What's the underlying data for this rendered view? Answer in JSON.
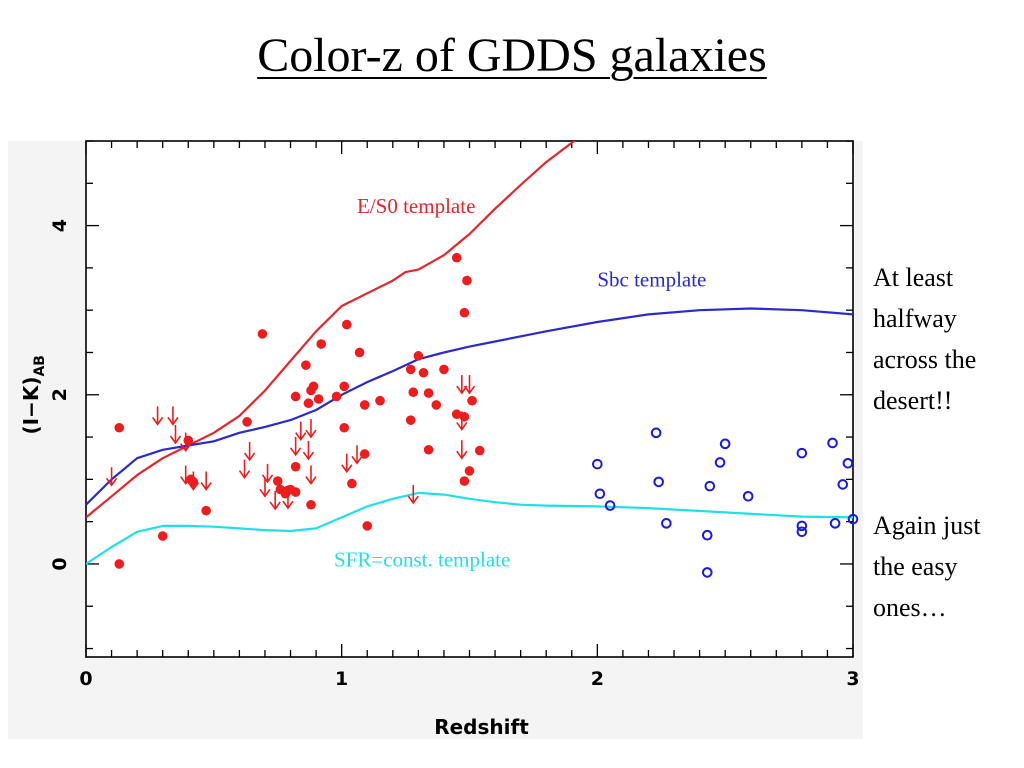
{
  "slide": {
    "title": "Color-z of GDDS galaxies",
    "note_top": "At least\nhalfway\nacross the\ndesert!!",
    "note_bottom": "Again just\nthe easy\nones…"
  },
  "chart_data": {
    "type": "scatter",
    "xlabel": "Redshift",
    "ylabel": "(I−K)",
    "ylabel_subscript": "AB",
    "xlim": [
      0,
      3
    ],
    "ylim": [
      -1.1,
      5
    ],
    "xticks": [
      0,
      1,
      2,
      3
    ],
    "yticks": [
      0,
      2,
      4
    ],
    "grid": false,
    "templates": [
      {
        "name": "E/S0 template",
        "color": "#e8242a",
        "points": [
          [
            0,
            0.55
          ],
          [
            0.1,
            0.8
          ],
          [
            0.2,
            1.05
          ],
          [
            0.3,
            1.25
          ],
          [
            0.4,
            1.4
          ],
          [
            0.5,
            1.55
          ],
          [
            0.6,
            1.75
          ],
          [
            0.7,
            2.05
          ],
          [
            0.8,
            2.4
          ],
          [
            0.9,
            2.75
          ],
          [
            1.0,
            3.05
          ],
          [
            1.1,
            3.2
          ],
          [
            1.2,
            3.35
          ],
          [
            1.25,
            3.45
          ],
          [
            1.3,
            3.48
          ],
          [
            1.4,
            3.65
          ],
          [
            1.5,
            3.9
          ],
          [
            1.6,
            4.2
          ],
          [
            1.7,
            4.48
          ],
          [
            1.8,
            4.75
          ],
          [
            1.9,
            4.98
          ],
          [
            2.05,
            5.3
          ]
        ]
      },
      {
        "name": "Sbc template",
        "color": "#2a2acf",
        "points": [
          [
            0,
            0.7
          ],
          [
            0.1,
            1.0
          ],
          [
            0.2,
            1.25
          ],
          [
            0.3,
            1.35
          ],
          [
            0.4,
            1.4
          ],
          [
            0.5,
            1.45
          ],
          [
            0.6,
            1.55
          ],
          [
            0.7,
            1.62
          ],
          [
            0.8,
            1.7
          ],
          [
            0.9,
            1.82
          ],
          [
            1.0,
            2.0
          ],
          [
            1.1,
            2.15
          ],
          [
            1.2,
            2.28
          ],
          [
            1.3,
            2.42
          ],
          [
            1.4,
            2.5
          ],
          [
            1.5,
            2.57
          ],
          [
            1.6,
            2.63
          ],
          [
            1.8,
            2.75
          ],
          [
            2.0,
            2.86
          ],
          [
            2.2,
            2.95
          ],
          [
            2.4,
            3.0
          ],
          [
            2.6,
            3.02
          ],
          [
            2.8,
            3.0
          ],
          [
            3.0,
            2.95
          ]
        ]
      },
      {
        "name": "SFR=const. template",
        "color": "#1fe0ea",
        "points": [
          [
            0,
            0.0
          ],
          [
            0.1,
            0.2
          ],
          [
            0.2,
            0.38
          ],
          [
            0.3,
            0.45
          ],
          [
            0.4,
            0.45
          ],
          [
            0.5,
            0.44
          ],
          [
            0.6,
            0.42
          ],
          [
            0.7,
            0.4
          ],
          [
            0.8,
            0.39
          ],
          [
            0.9,
            0.42
          ],
          [
            1.0,
            0.55
          ],
          [
            1.1,
            0.68
          ],
          [
            1.2,
            0.77
          ],
          [
            1.3,
            0.84
          ],
          [
            1.4,
            0.82
          ],
          [
            1.5,
            0.77
          ],
          [
            1.6,
            0.73
          ],
          [
            1.7,
            0.7
          ],
          [
            1.8,
            0.69
          ],
          [
            2.0,
            0.68
          ],
          [
            2.2,
            0.66
          ],
          [
            2.5,
            0.61
          ],
          [
            2.8,
            0.56
          ],
          [
            3.0,
            0.55
          ]
        ]
      }
    ],
    "series": [
      {
        "name": "red filled",
        "color": "#ee1c1c",
        "marker": "filled-circle",
        "points": [
          [
            0.13,
            1.61
          ],
          [
            0.13,
            0.0
          ],
          [
            0.3,
            0.33
          ],
          [
            0.4,
            1.46
          ],
          [
            0.41,
            1.0
          ],
          [
            0.42,
            0.97
          ],
          [
            0.47,
            0.63
          ],
          [
            0.63,
            1.68
          ],
          [
            0.69,
            2.72
          ],
          [
            0.75,
            0.98
          ],
          [
            0.76,
            0.88
          ],
          [
            0.78,
            0.83
          ],
          [
            0.79,
            0.87
          ],
          [
            0.8,
            0.88
          ],
          [
            0.82,
            0.85
          ],
          [
            0.82,
            1.15
          ],
          [
            0.82,
            1.98
          ],
          [
            0.86,
            2.35
          ],
          [
            0.87,
            1.9
          ],
          [
            0.88,
            0.7
          ],
          [
            0.88,
            2.05
          ],
          [
            0.89,
            2.1
          ],
          [
            0.91,
            1.95
          ],
          [
            0.92,
            2.6
          ],
          [
            0.98,
            1.98
          ],
          [
            1.01,
            2.1
          ],
          [
            1.01,
            1.61
          ],
          [
            1.02,
            2.83
          ],
          [
            1.04,
            0.95
          ],
          [
            1.07,
            2.5
          ],
          [
            1.09,
            1.3
          ],
          [
            1.09,
            1.88
          ],
          [
            1.1,
            0.45
          ],
          [
            1.15,
            1.93
          ],
          [
            1.27,
            2.3
          ],
          [
            1.27,
            1.7
          ],
          [
            1.28,
            2.03
          ],
          [
            1.3,
            2.46
          ],
          [
            1.32,
            2.26
          ],
          [
            1.34,
            1.35
          ],
          [
            1.34,
            2.02
          ],
          [
            1.37,
            1.88
          ],
          [
            1.4,
            2.3
          ],
          [
            1.45,
            3.62
          ],
          [
            1.45,
            1.77
          ],
          [
            1.48,
            2.97
          ],
          [
            1.48,
            1.74
          ],
          [
            1.48,
            0.98
          ],
          [
            1.49,
            3.35
          ],
          [
            1.5,
            1.1
          ],
          [
            1.51,
            1.93
          ],
          [
            1.54,
            1.34
          ]
        ]
      },
      {
        "name": "red upper limits",
        "color": "#ee1c1c",
        "marker": "down-arrow",
        "points": [
          [
            0.1,
            0.93
          ],
          [
            0.28,
            1.65
          ],
          [
            0.34,
            1.65
          ],
          [
            0.35,
            1.43
          ],
          [
            0.39,
            1.34
          ],
          [
            0.39,
            0.95
          ],
          [
            0.42,
            0.88
          ],
          [
            0.47,
            0.88
          ],
          [
            0.62,
            1.02
          ],
          [
            0.64,
            1.23
          ],
          [
            0.7,
            0.8
          ],
          [
            0.71,
            0.97
          ],
          [
            0.74,
            0.65
          ],
          [
            0.79,
            0.66
          ],
          [
            0.82,
            1.29
          ],
          [
            0.84,
            1.47
          ],
          [
            0.87,
            1.24
          ],
          [
            0.88,
            1.5
          ],
          [
            0.88,
            0.95
          ],
          [
            1.02,
            1.09
          ],
          [
            1.06,
            1.19
          ],
          [
            1.28,
            0.72
          ],
          [
            1.47,
            2.02
          ],
          [
            1.5,
            2.02
          ],
          [
            1.47,
            1.59
          ],
          [
            1.47,
            1.25
          ]
        ]
      },
      {
        "name": "blue open",
        "color": "#1a1ae6",
        "marker": "open-circle",
        "points": [
          [
            2.0,
            1.18
          ],
          [
            2.01,
            0.83
          ],
          [
            2.05,
            0.69
          ],
          [
            2.23,
            1.55
          ],
          [
            2.24,
            0.97
          ],
          [
            2.27,
            0.48
          ],
          [
            2.43,
            0.34
          ],
          [
            2.43,
            -0.1
          ],
          [
            2.44,
            0.92
          ],
          [
            2.48,
            1.2
          ],
          [
            2.5,
            1.42
          ],
          [
            2.59,
            0.8
          ],
          [
            2.8,
            1.31
          ],
          [
            2.8,
            0.45
          ],
          [
            2.8,
            0.38
          ],
          [
            2.92,
            1.43
          ],
          [
            2.93,
            0.48
          ],
          [
            2.96,
            0.94
          ],
          [
            2.98,
            1.19
          ],
          [
            3.0,
            0.53
          ]
        ]
      }
    ],
    "annotations": [
      {
        "text": "E/S0 template",
        "x": 1.06,
        "y": 4.15,
        "color": "#e8242a"
      },
      {
        "text": "Sbc template",
        "x": 2.0,
        "y": 3.28,
        "color": "#2a2acf"
      },
      {
        "text": "SFR=const. template",
        "x": 0.97,
        "y": -0.03,
        "color": "#1fe0ea"
      }
    ]
  }
}
